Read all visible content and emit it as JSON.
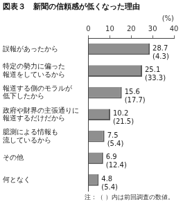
{
  "chart_data": {
    "type": "bar",
    "orientation": "horizontal",
    "title": "図表３　新聞の信頼感が低くなった理由",
    "xlabel": "(%)",
    "categories": [
      "誤報があったから",
      "特定の勢力に偏った\n報道をしているから",
      "報道する側のモラルが\n低下したから",
      "政府や財界の主張通りに\n報道するだけだから",
      "臆測による情報も\n流しているから",
      "その他",
      "何となく"
    ],
    "values": [
      28.7,
      25.1,
      15.6,
      10.2,
      7.5,
      6.9,
      4.8
    ],
    "previous_value_labels": [
      "(4.3)",
      "(33.3)",
      "(17.7)",
      "(21.5)",
      "(5.4)",
      "(12.4)",
      "(5.4)"
    ],
    "annotations": [
      "注：（ ）内は前回調査の数値。"
    ],
    "color": "#8f8f8f",
    "xlim": [
      0,
      40
    ],
    "xticks": [
      0,
      10,
      20,
      30,
      40
    ],
    "grid": false,
    "data_labels": true
  }
}
